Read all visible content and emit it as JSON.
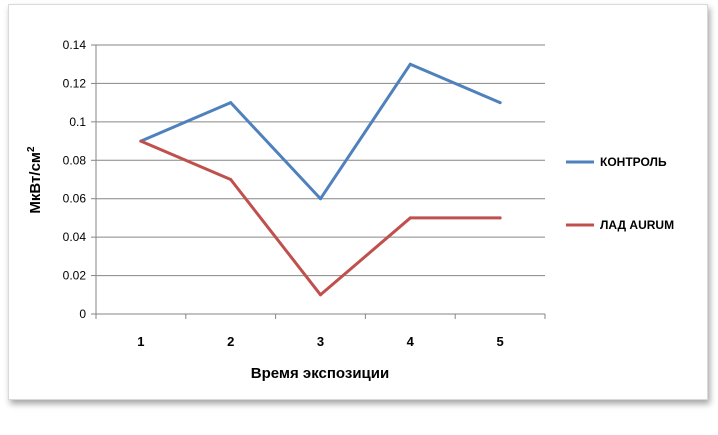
{
  "chart_data": {
    "type": "line",
    "categories": [
      "1",
      "2",
      "3",
      "4",
      "5"
    ],
    "series": [
      {
        "name": "КОНТРОЛЬ",
        "values": [
          0.09,
          0.11,
          0.06,
          0.13,
          0.11
        ],
        "color": "#4f81bd"
      },
      {
        "name": "ЛАД AURUM",
        "values": [
          0.09,
          0.07,
          0.01,
          0.05,
          0.05
        ],
        "color": "#c0504d"
      }
    ],
    "xlabel": "Время  экспозиции",
    "ylabel_main": "МкВт/см",
    "ylabel_sup": "2",
    "ylim": [
      0,
      0.14
    ],
    "yticks": [
      "0",
      "0.02",
      "0.04",
      "0.06",
      "0.08",
      "0.1",
      "0.12",
      "0.14"
    ],
    "grid": true,
    "legend_position": "right"
  }
}
